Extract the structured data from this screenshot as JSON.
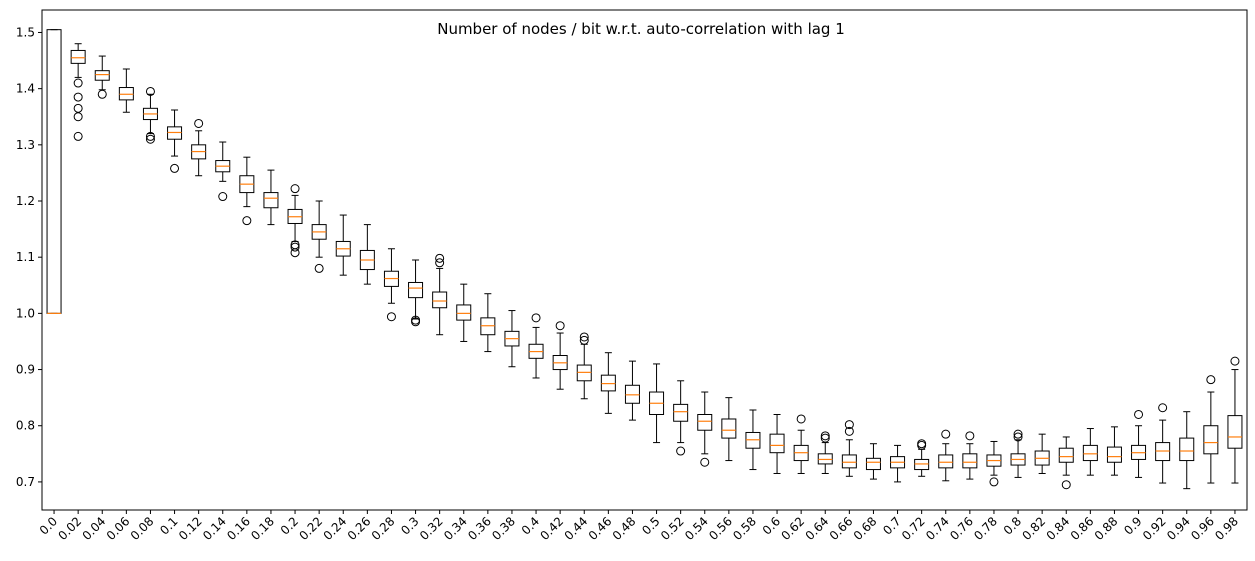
{
  "chart_data": {
    "type": "box",
    "title": "Number of nodes / bit w.r.t. auto-correlation with lag 1",
    "xlabel": "",
    "ylabel": "",
    "ylim": [
      0.65,
      1.54
    ],
    "yticks": [
      "0.7",
      "0.8",
      "0.9",
      "1.0",
      "1.1",
      "1.2",
      "1.3",
      "1.4",
      "1.5"
    ],
    "grid": false,
    "categories": [
      "0.0",
      "0.02",
      "0.04",
      "0.06",
      "0.08",
      "0.1",
      "0.12",
      "0.14",
      "0.16",
      "0.18",
      "0.2",
      "0.22",
      "0.24",
      "0.26",
      "0.28",
      "0.3",
      "0.32",
      "0.34",
      "0.36",
      "0.38",
      "0.4",
      "0.42",
      "0.44",
      "0.46",
      "0.48",
      "0.5",
      "0.52",
      "0.54",
      "0.56",
      "0.58",
      "0.6",
      "0.62",
      "0.64",
      "0.66",
      "0.68",
      "0.7",
      "0.72",
      "0.74",
      "0.76",
      "0.78",
      "0.8",
      "0.82",
      "0.84",
      "0.86",
      "0.88",
      "0.9",
      "0.92",
      "0.94",
      "0.96",
      "0.98"
    ],
    "boxes": [
      {
        "whislo": 1.0,
        "q1": 1.0,
        "med": 1.0,
        "q3": 1.505,
        "whishi": 1.505,
        "fliers": []
      },
      {
        "whislo": 1.42,
        "q1": 1.445,
        "med": 1.455,
        "q3": 1.468,
        "whishi": 1.48,
        "fliers": [
          1.41,
          1.385,
          1.365,
          1.35,
          1.315
        ]
      },
      {
        "whislo": 1.398,
        "q1": 1.415,
        "med": 1.425,
        "q3": 1.432,
        "whishi": 1.458,
        "fliers": [
          1.39
        ]
      },
      {
        "whislo": 1.358,
        "q1": 1.38,
        "med": 1.39,
        "q3": 1.402,
        "whishi": 1.435,
        "fliers": []
      },
      {
        "whislo": 1.32,
        "q1": 1.345,
        "med": 1.355,
        "q3": 1.365,
        "whishi": 1.39,
        "fliers": [
          1.395,
          1.315,
          1.31
        ]
      },
      {
        "whislo": 1.28,
        "q1": 1.31,
        "med": 1.322,
        "q3": 1.332,
        "whishi": 1.362,
        "fliers": [
          1.258
        ]
      },
      {
        "whislo": 1.245,
        "q1": 1.275,
        "med": 1.288,
        "q3": 1.3,
        "whishi": 1.325,
        "fliers": [
          1.338
        ]
      },
      {
        "whislo": 1.235,
        "q1": 1.252,
        "med": 1.262,
        "q3": 1.272,
        "whishi": 1.305,
        "fliers": [
          1.208
        ]
      },
      {
        "whislo": 1.19,
        "q1": 1.215,
        "med": 1.23,
        "q3": 1.245,
        "whishi": 1.278,
        "fliers": [
          1.165
        ]
      },
      {
        "whislo": 1.158,
        "q1": 1.188,
        "med": 1.205,
        "q3": 1.215,
        "whishi": 1.255,
        "fliers": []
      },
      {
        "whislo": 1.128,
        "q1": 1.16,
        "med": 1.172,
        "q3": 1.185,
        "whishi": 1.21,
        "fliers": [
          1.222,
          1.122,
          1.118,
          1.108
        ]
      },
      {
        "whislo": 1.1,
        "q1": 1.132,
        "med": 1.145,
        "q3": 1.158,
        "whishi": 1.2,
        "fliers": [
          1.08
        ]
      },
      {
        "whislo": 1.068,
        "q1": 1.102,
        "med": 1.115,
        "q3": 1.128,
        "whishi": 1.175,
        "fliers": []
      },
      {
        "whislo": 1.052,
        "q1": 1.078,
        "med": 1.095,
        "q3": 1.112,
        "whishi": 1.158,
        "fliers": []
      },
      {
        "whislo": 1.018,
        "q1": 1.048,
        "med": 1.062,
        "q3": 1.075,
        "whishi": 1.115,
        "fliers": [
          0.994
        ]
      },
      {
        "whislo": 0.99,
        "q1": 1.028,
        "med": 1.045,
        "q3": 1.055,
        "whishi": 1.095,
        "fliers": [
          0.988,
          0.985
        ]
      },
      {
        "whislo": 0.962,
        "q1": 1.01,
        "med": 1.022,
        "q3": 1.038,
        "whishi": 1.08,
        "fliers": [
          1.098,
          1.09
        ]
      },
      {
        "whislo": 0.95,
        "q1": 0.988,
        "med": 1.0,
        "q3": 1.015,
        "whishi": 1.052,
        "fliers": []
      },
      {
        "whislo": 0.932,
        "q1": 0.962,
        "med": 0.978,
        "q3": 0.992,
        "whishi": 1.035,
        "fliers": []
      },
      {
        "whislo": 0.905,
        "q1": 0.942,
        "med": 0.955,
        "q3": 0.968,
        "whishi": 1.005,
        "fliers": []
      },
      {
        "whislo": 0.885,
        "q1": 0.92,
        "med": 0.932,
        "q3": 0.945,
        "whishi": 0.975,
        "fliers": [
          0.992
        ]
      },
      {
        "whislo": 0.865,
        "q1": 0.9,
        "med": 0.912,
        "q3": 0.925,
        "whishi": 0.965,
        "fliers": [
          0.978
        ]
      },
      {
        "whislo": 0.848,
        "q1": 0.88,
        "med": 0.895,
        "q3": 0.908,
        "whishi": 0.945,
        "fliers": [
          0.958,
          0.952
        ]
      },
      {
        "whislo": 0.822,
        "q1": 0.862,
        "med": 0.875,
        "q3": 0.89,
        "whishi": 0.93,
        "fliers": []
      },
      {
        "whislo": 0.81,
        "q1": 0.84,
        "med": 0.855,
        "q3": 0.872,
        "whishi": 0.915,
        "fliers": []
      },
      {
        "whislo": 0.77,
        "q1": 0.82,
        "med": 0.84,
        "q3": 0.86,
        "whishi": 0.91,
        "fliers": []
      },
      {
        "whislo": 0.77,
        "q1": 0.808,
        "med": 0.825,
        "q3": 0.838,
        "whishi": 0.88,
        "fliers": [
          0.755
        ]
      },
      {
        "whislo": 0.75,
        "q1": 0.792,
        "med": 0.808,
        "q3": 0.82,
        "whishi": 0.86,
        "fliers": [
          0.735
        ]
      },
      {
        "whislo": 0.738,
        "q1": 0.778,
        "med": 0.792,
        "q3": 0.812,
        "whishi": 0.85,
        "fliers": []
      },
      {
        "whislo": 0.722,
        "q1": 0.76,
        "med": 0.775,
        "q3": 0.788,
        "whishi": 0.828,
        "fliers": []
      },
      {
        "whislo": 0.715,
        "q1": 0.752,
        "med": 0.765,
        "q3": 0.785,
        "whishi": 0.82,
        "fliers": []
      },
      {
        "whislo": 0.715,
        "q1": 0.738,
        "med": 0.752,
        "q3": 0.765,
        "whishi": 0.792,
        "fliers": [
          0.812
        ]
      },
      {
        "whislo": 0.715,
        "q1": 0.732,
        "med": 0.74,
        "q3": 0.75,
        "whishi": 0.77,
        "fliers": [
          0.782,
          0.778
        ]
      },
      {
        "whislo": 0.71,
        "q1": 0.725,
        "med": 0.735,
        "q3": 0.748,
        "whishi": 0.775,
        "fliers": [
          0.802,
          0.79
        ]
      },
      {
        "whislo": 0.705,
        "q1": 0.722,
        "med": 0.735,
        "q3": 0.742,
        "whishi": 0.768,
        "fliers": []
      },
      {
        "whislo": 0.7,
        "q1": 0.725,
        "med": 0.735,
        "q3": 0.745,
        "whishi": 0.765,
        "fliers": []
      },
      {
        "whislo": 0.71,
        "q1": 0.722,
        "med": 0.732,
        "q3": 0.74,
        "whishi": 0.758,
        "fliers": [
          0.768,
          0.765
        ]
      },
      {
        "whislo": 0.702,
        "q1": 0.725,
        "med": 0.735,
        "q3": 0.748,
        "whishi": 0.768,
        "fliers": [
          0.785
        ]
      },
      {
        "whislo": 0.705,
        "q1": 0.725,
        "med": 0.735,
        "q3": 0.75,
        "whishi": 0.768,
        "fliers": [
          0.782
        ]
      },
      {
        "whislo": 0.712,
        "q1": 0.728,
        "med": 0.738,
        "q3": 0.748,
        "whishi": 0.772,
        "fliers": [
          0.7
        ]
      },
      {
        "whislo": 0.708,
        "q1": 0.73,
        "med": 0.74,
        "q3": 0.75,
        "whishi": 0.775,
        "fliers": [
          0.785,
          0.78
        ]
      },
      {
        "whislo": 0.715,
        "q1": 0.73,
        "med": 0.742,
        "q3": 0.755,
        "whishi": 0.785,
        "fliers": []
      },
      {
        "whislo": 0.712,
        "q1": 0.735,
        "med": 0.745,
        "q3": 0.76,
        "whishi": 0.78,
        "fliers": [
          0.695
        ]
      },
      {
        "whislo": 0.712,
        "q1": 0.738,
        "med": 0.75,
        "q3": 0.765,
        "whishi": 0.795,
        "fliers": []
      },
      {
        "whislo": 0.712,
        "q1": 0.735,
        "med": 0.745,
        "q3": 0.762,
        "whishi": 0.798,
        "fliers": []
      },
      {
        "whislo": 0.708,
        "q1": 0.74,
        "med": 0.752,
        "q3": 0.765,
        "whishi": 0.8,
        "fliers": [
          0.82
        ]
      },
      {
        "whislo": 0.698,
        "q1": 0.738,
        "med": 0.755,
        "q3": 0.77,
        "whishi": 0.81,
        "fliers": [
          0.832
        ]
      },
      {
        "whislo": 0.688,
        "q1": 0.738,
        "med": 0.755,
        "q3": 0.778,
        "whishi": 0.825,
        "fliers": []
      },
      {
        "whislo": 0.698,
        "q1": 0.75,
        "med": 0.77,
        "q3": 0.8,
        "whishi": 0.86,
        "fliers": [
          0.882
        ]
      },
      {
        "whislo": 0.698,
        "q1": 0.76,
        "med": 0.78,
        "q3": 0.818,
        "whishi": 0.9,
        "fliers": [
          0.915
        ]
      }
    ],
    "colors": {
      "box": "#000000",
      "median": "#ff7f0e",
      "flier": "#000000",
      "background": "#ffffff"
    }
  }
}
